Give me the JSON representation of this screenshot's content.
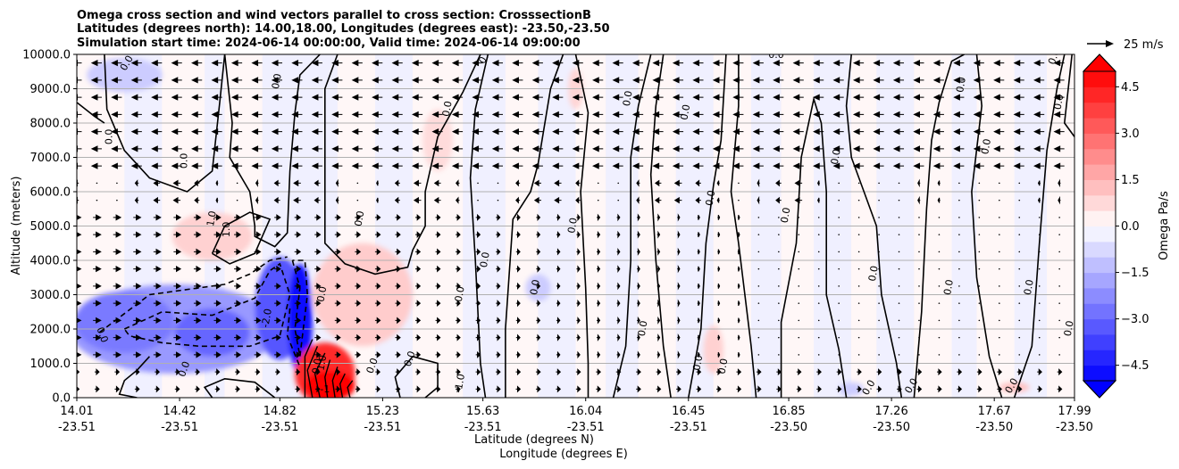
{
  "chart_data": {
    "type": "heatmap",
    "title_lines": [
      "Omega cross section and wind vectors parallel to cross section: CrosssectionB",
      "Latitudes (degrees north): 14.00,18.00, Longitudes (degrees east): -23.50,-23.50",
      "Simulation start time: 2024-06-14 00:00:00, Valid time: 2024-06-14 09:00:00"
    ],
    "ylabel": "Altitude (meters)",
    "xlabel_lines": [
      "Latitude (degrees N)",
      "Longitude (degrees E)"
    ],
    "ylim": [
      0,
      10000
    ],
    "yticks": [
      "0.0",
      "1000.0",
      "2000.0",
      "3000.0",
      "4000.0",
      "5000.0",
      "6000.0",
      "7000.0",
      "8000.0",
      "9000.0",
      "10000.0"
    ],
    "xlim": [
      14.01,
      17.99
    ],
    "xticks": [
      {
        "lat": "14.01",
        "lon": "-23.51"
      },
      {
        "lat": "14.42",
        "lon": "-23.51"
      },
      {
        "lat": "14.82",
        "lon": "-23.51"
      },
      {
        "lat": "15.23",
        "lon": "-23.51"
      },
      {
        "lat": "15.63",
        "lon": "-23.51"
      },
      {
        "lat": "16.04",
        "lon": "-23.51"
      },
      {
        "lat": "16.45",
        "lon": "-23.51"
      },
      {
        "lat": "16.85",
        "lon": "-23.50"
      },
      {
        "lat": "17.26",
        "lon": "-23.50"
      },
      {
        "lat": "17.67",
        "lon": "-23.50"
      },
      {
        "lat": "17.99",
        "lon": "-23.50"
      }
    ],
    "grid": "horizontal",
    "colorbar": {
      "label": "Omega Pa/s",
      "ticks": [
        "4.5",
        "3.0",
        "1.5",
        "0.0",
        "−1.5",
        "−3.0",
        "−4.5"
      ],
      "range": [
        -5,
        5
      ],
      "cmap": "bwr",
      "extend": "both"
    },
    "quiver_key": "25 m/s",
    "contour_labels": [
      "0.0",
      "1.0",
      "-1.0",
      "-2.0",
      "-1",
      "1"
    ],
    "features": [
      {
        "name": "downdraft core",
        "lat": 14.9,
        "alt": 2500,
        "omega": -4.5
      },
      {
        "name": "updraft core",
        "lat": 15.0,
        "alt": 400,
        "omega": 5.0
      },
      {
        "name": "negative omega layer",
        "lat_range": [
          14.01,
          14.85
        ],
        "alt_range": [
          500,
          3500
        ],
        "omega": -2.0
      },
      {
        "name": "positive omega patch",
        "lat_range": [
          14.4,
          14.75
        ],
        "alt_range": [
          4000,
          5500
        ],
        "omega": 0.8
      },
      {
        "name": "positive omega patch",
        "lat_range": [
          15.0,
          15.4
        ],
        "alt_range": [
          1500,
          4500
        ],
        "omega": 1.0
      }
    ],
    "wind": {
      "low_levels": "westerly (toward +lat)",
      "upper_levels": "easterly (toward -lat)",
      "transition_alt": 6000
    }
  }
}
